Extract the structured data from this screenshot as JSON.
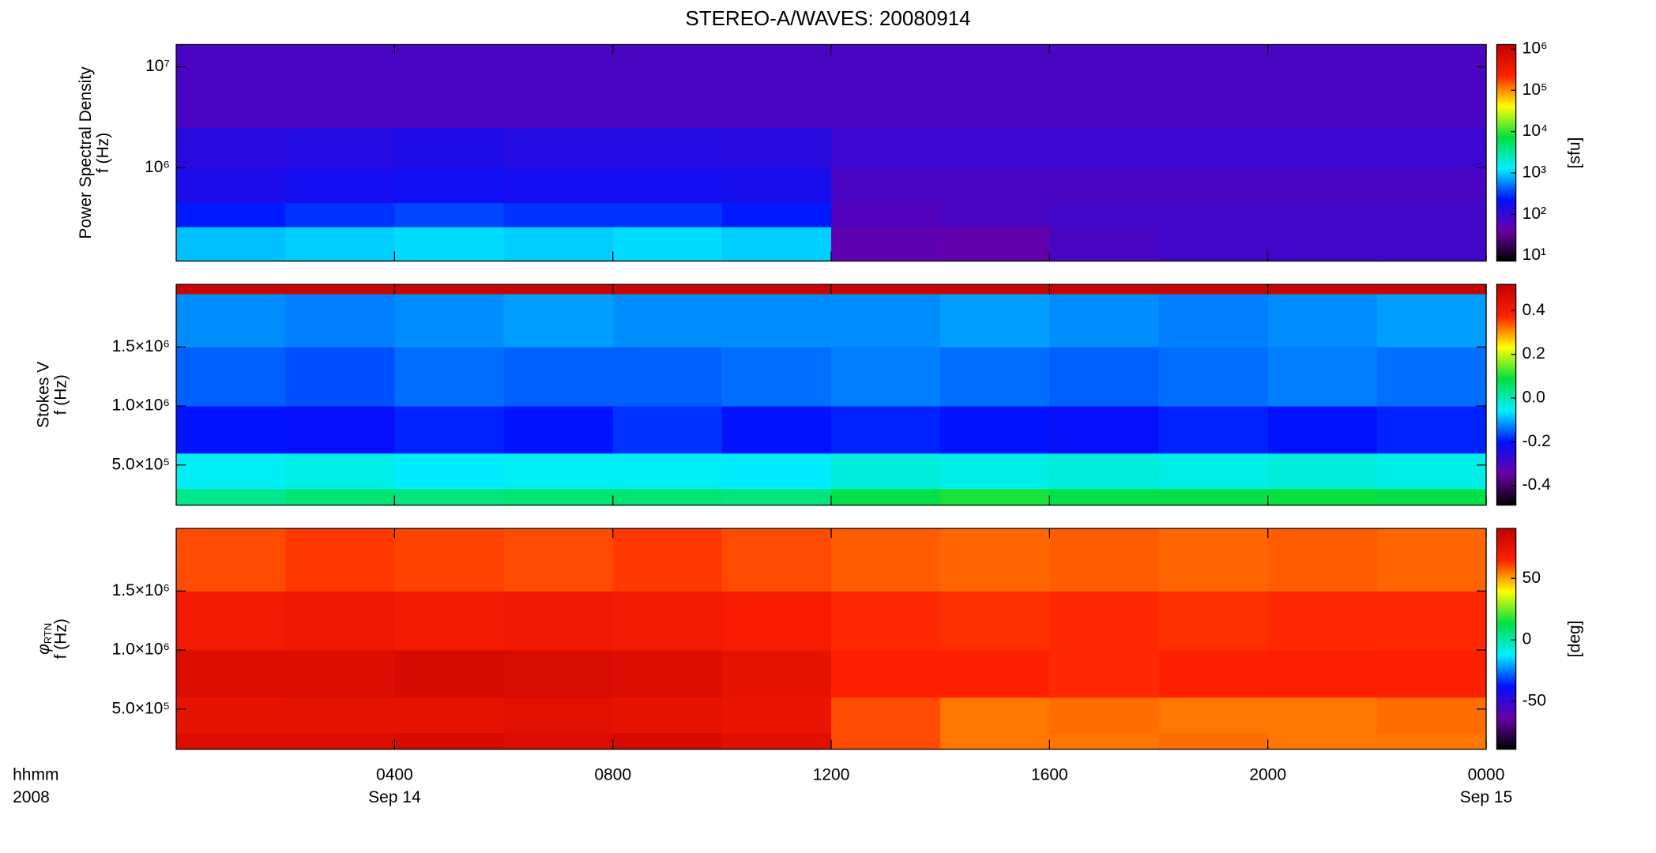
{
  "chart_data": [
    {
      "type": "heatmap",
      "title": "STEREO-A/WAVES: 20080914",
      "ylabel": [
        "Power Spectral Density",
        "f (Hz)"
      ],
      "ylog": true,
      "ylim": [
        119000,
        16600000
      ],
      "yticks": [
        {
          "value": 1000000,
          "label": "10⁶"
        },
        {
          "value": 10000000,
          "label": "10⁷"
        }
      ],
      "xbins": [
        0,
        2,
        4,
        6,
        8,
        10,
        12,
        14,
        16,
        18,
        20,
        22,
        24
      ],
      "ybins": [
        119000,
        260000,
        450000,
        1000000,
        2500000,
        16600000
      ],
      "z": [
        [
          900,
          1000,
          1100,
          1000,
          1100,
          1000,
          50,
          45,
          70,
          80,
          80,
          80
        ],
        [
          250,
          300,
          350,
          300,
          300,
          250,
          60,
          70,
          80,
          80,
          80,
          80
        ],
        [
          150,
          170,
          180,
          170,
          170,
          160,
          70,
          70,
          70,
          70,
          70,
          70
        ],
        [
          120,
          130,
          140,
          130,
          130,
          120,
          90,
          90,
          90,
          90,
          90,
          90
        ],
        [
          70,
          70,
          70,
          70,
          70,
          70,
          70,
          70,
          70,
          70,
          70,
          70
        ]
      ],
      "clog": true,
      "clim": [
        7.4,
        1270000
      ],
      "cticks": [
        {
          "value": 10,
          "label": "10¹"
        },
        {
          "value": 100,
          "label": "10²"
        },
        {
          "value": 1000,
          "label": "10³"
        },
        {
          "value": 10000,
          "label": "10⁴"
        },
        {
          "value": 100000,
          "label": "10⁵"
        },
        {
          "value": 1000000,
          "label": "10⁶"
        }
      ],
      "clabel": "[sfu]"
    },
    {
      "type": "heatmap",
      "ylabel": [
        "Stokes V",
        "f (Hz)"
      ],
      "ylog": false,
      "ylim": [
        160000,
        2030000
      ],
      "yticks": [
        {
          "value": 500000,
          "label": "5.0×10⁵"
        },
        {
          "value": 1000000,
          "label": "1.0×10⁶"
        },
        {
          "value": 1500000,
          "label": "1.5×10⁶"
        }
      ],
      "xbins": [
        0,
        2,
        4,
        6,
        8,
        10,
        12,
        14,
        16,
        18,
        20,
        22,
        24
      ],
      "ybins": [
        160000,
        300000,
        600000,
        1000000,
        1500000,
        1950000,
        2030000
      ],
      "z": [
        [
          0.03,
          0.05,
          0.04,
          0.05,
          0.05,
          0.04,
          0.08,
          0.1,
          0.08,
          0.08,
          0.09,
          0.08
        ],
        [
          -0.05,
          -0.04,
          -0.06,
          -0.05,
          -0.05,
          -0.06,
          -0.03,
          -0.04,
          -0.03,
          -0.04,
          -0.03,
          -0.04
        ],
        [
          -0.2,
          -0.21,
          -0.19,
          -0.2,
          -0.18,
          -0.2,
          -0.19,
          -0.2,
          -0.21,
          -0.19,
          -0.2,
          -0.19
        ],
        [
          -0.15,
          -0.16,
          -0.14,
          -0.15,
          -0.15,
          -0.14,
          -0.13,
          -0.14,
          -0.15,
          -0.14,
          -0.13,
          -0.14
        ],
        [
          -0.12,
          -0.13,
          -0.12,
          -0.11,
          -0.12,
          -0.12,
          -0.12,
          -0.11,
          -0.12,
          -0.13,
          -0.12,
          -0.11
        ],
        [
          0.5,
          0.5,
          0.5,
          0.5,
          0.5,
          0.5,
          0.5,
          0.5,
          0.5,
          0.5,
          0.5,
          0.5
        ]
      ],
      "clog": false,
      "clim": [
        -0.49,
        0.52
      ],
      "cticks": [
        0.4,
        0.2,
        {
          "value": 0,
          "label": "0.0"
        },
        -0.2,
        -0.4
      ]
    },
    {
      "type": "heatmap",
      "ylabel_symbol": "φ",
      "ylabel_subscript": "RTN",
      "ylabel": [
        "f (Hz)"
      ],
      "ylog": false,
      "ylim": [
        160000,
        2030000
      ],
      "yticks": [
        {
          "value": 500000,
          "label": "5.0×10⁵"
        },
        {
          "value": 1000000,
          "label": "1.0×10⁶"
        },
        {
          "value": 1500000,
          "label": "1.5×10⁶"
        }
      ],
      "xbins": [
        0,
        2,
        4,
        6,
        8,
        10,
        12,
        14,
        16,
        18,
        20,
        22,
        24
      ],
      "ybins": [
        160000,
        300000,
        600000,
        1000000,
        1500000,
        2030000
      ],
      "z": [
        [
          80,
          80,
          82,
          80,
          82,
          78,
          60,
          55,
          55,
          56,
          55,
          55
        ],
        [
          75,
          76,
          75,
          77,
          75,
          74,
          60,
          55,
          56,
          55,
          55,
          56
        ],
        [
          80,
          80,
          82,
          81,
          80,
          75,
          65,
          65,
          64,
          65,
          66,
          65
        ],
        [
          70,
          72,
          70,
          71,
          70,
          68,
          64,
          63,
          64,
          63,
          64,
          64
        ],
        [
          60,
          62,
          61,
          60,
          62,
          60,
          58,
          57,
          58,
          57,
          58,
          57
        ]
      ],
      "clog": false,
      "clim": [
        -88.8,
        90.5
      ],
      "cticks": [
        50,
        0,
        -50
      ],
      "clabel": "[deg]",
      "xlim": [
        0,
        24
      ],
      "xticks": [
        {
          "value": 4,
          "label": "0400"
        },
        {
          "value": 8,
          "label": "0800"
        },
        {
          "value": 12,
          "label": "1200"
        },
        {
          "value": 16,
          "label": "1600"
        },
        {
          "value": 20,
          "label": "2000"
        },
        {
          "value": 24,
          "label": "0000"
        }
      ],
      "x_date_labels": [
        {
          "value": 4,
          "label": "Sep 14"
        },
        {
          "value": 24,
          "label": "Sep 15"
        }
      ],
      "x_label": [
        "hhmm",
        "2008"
      ]
    }
  ],
  "colormap": [
    "#000000",
    "#6a00a8",
    "#0010ff",
    "#00f0ff",
    "#00e040",
    "#ffff00",
    "#ff2000",
    "#c00000"
  ]
}
